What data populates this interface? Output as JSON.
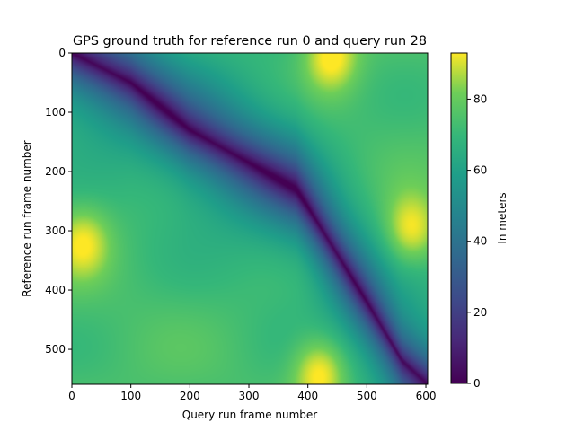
{
  "chart_data": {
    "type": "heatmap",
    "title": "GPS ground truth for reference run 0 and query run 28",
    "xlabel": "Query run frame number",
    "ylabel": "Reference run frame number",
    "colorbar_label": "In meters",
    "xlim": [
      0,
      603
    ],
    "ylim": [
      559,
      0
    ],
    "x_ticks": [
      0,
      100,
      200,
      300,
      400,
      500,
      600
    ],
    "y_ticks": [
      0,
      100,
      200,
      300,
      400,
      500
    ],
    "colorbar_range": [
      0,
      93
    ],
    "colorbar_ticks": [
      0,
      20,
      40,
      60,
      80
    ],
    "colormap": "viridis",
    "min_distance_path": [
      {
        "x": 0,
        "y": 0
      },
      {
        "x": 100,
        "y": 50
      },
      {
        "x": 200,
        "y": 130
      },
      {
        "x": 300,
        "y": 185
      },
      {
        "x": 380,
        "y": 230
      },
      {
        "x": 400,
        "y": 260
      },
      {
        "x": 450,
        "y": 340
      },
      {
        "x": 500,
        "y": 420
      },
      {
        "x": 560,
        "y": 520
      },
      {
        "x": 603,
        "y": 559
      }
    ],
    "hot_regions": [
      {
        "x": 440,
        "y": 5,
        "value": 92
      },
      {
        "x": 20,
        "y": 320,
        "value": 88
      },
      {
        "x": 575,
        "y": 300,
        "value": 92
      },
      {
        "x": 420,
        "y": 540,
        "value": 93
      }
    ]
  }
}
